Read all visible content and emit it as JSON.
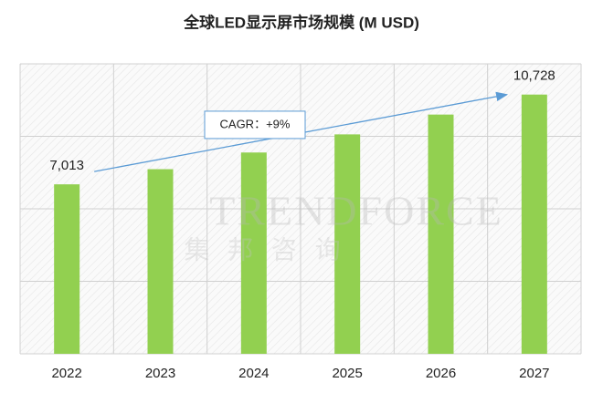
{
  "chart_data": {
    "type": "bar",
    "title": "全球LED显示屏市场规模 (M USD)",
    "categories": [
      "2022",
      "2023",
      "2024",
      "2025",
      "2026",
      "2027"
    ],
    "values": [
      7013,
      7640,
      8330,
      9080,
      9900,
      10728
    ],
    "value_labels": [
      "7,013",
      null,
      null,
      null,
      null,
      "10,728"
    ],
    "color": "#92d050",
    "ylim": [
      0,
      12000
    ],
    "yticks": [
      0,
      3000,
      6000,
      9000,
      12000
    ],
    "grid": true,
    "annotation": "CAGR：+9%",
    "watermark": [
      "TRENDFORCE",
      "集 邦 咨 询"
    ]
  }
}
